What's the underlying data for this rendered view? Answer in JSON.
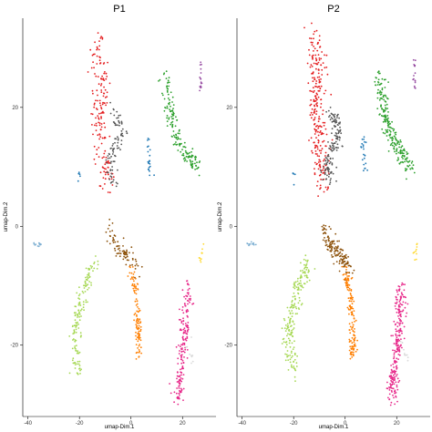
{
  "chart_data": [
    {
      "type": "scatter",
      "title": "P1",
      "xlabel": "umap-Dim.1",
      "ylabel": "umap-Dim.2",
      "xlim": [
        -42,
        33
      ],
      "ylim": [
        -32,
        35
      ],
      "xticks": [
        -40,
        -20,
        0,
        20
      ],
      "yticks": [
        -20,
        0,
        20
      ],
      "grid": false,
      "legend": "none",
      "clusters": [
        {
          "color": "#e41a1c",
          "centerline": [
            [
              -13,
              31
            ],
            [
              -11,
              24
            ],
            [
              -12,
              18
            ],
            [
              -11,
              12
            ],
            [
              -9,
              7
            ]
          ],
          "spread": 2.0,
          "n": 170
        },
        {
          "color": "#555555",
          "centerline": [
            [
              -7,
              19
            ],
            [
              -3,
              16
            ],
            [
              -6,
              13
            ],
            [
              -9,
              10
            ],
            [
              -6,
              8
            ]
          ],
          "spread": 1.3,
          "n": 90
        },
        {
          "color": "#2ca02c",
          "centerline": [
            [
              13,
              25
            ],
            [
              15,
              20
            ],
            [
              18,
              15
            ],
            [
              22,
              12
            ],
            [
              26,
              10
            ]
          ],
          "spread": 1.3,
          "n": 160
        },
        {
          "color": "#984ea3",
          "centerline": [
            [
              27,
              28
            ],
            [
              27,
              23
            ]
          ],
          "spread": 0.3,
          "n": 18
        },
        {
          "color": "#1f78b4",
          "centerline": [
            [
              7,
              15
            ],
            [
              7,
              11
            ],
            [
              8,
              9
            ]
          ],
          "spread": 0.6,
          "n": 22
        },
        {
          "color": "#1f78b4",
          "centerline": [
            [
              -20,
              9
            ],
            [
              -20,
              7
            ]
          ],
          "spread": 0.3,
          "n": 5
        },
        {
          "color": "#8c510a",
          "centerline": [
            [
              -8,
              0
            ],
            [
              -6,
              -3
            ],
            [
              -2,
              -5
            ],
            [
              2,
              -7
            ]
          ],
          "spread": 1.2,
          "n": 80
        },
        {
          "color": "#a6d854",
          "centerline": [
            [
              -14,
              -6
            ],
            [
              -18,
              -10
            ],
            [
              -21,
              -15
            ],
            [
              -22,
              -20
            ],
            [
              -20,
              -25
            ]
          ],
          "spread": 1.3,
          "n": 150
        },
        {
          "color": "#ff7f00",
          "centerline": [
            [
              0,
              -7
            ],
            [
              2,
              -12
            ],
            [
              3,
              -17
            ],
            [
              3,
              -22
            ]
          ],
          "spread": 0.8,
          "n": 110
        },
        {
          "color": "#e7298a",
          "centerline": [
            [
              22,
              -10
            ],
            [
              21,
              -16
            ],
            [
              20,
              -21
            ],
            [
              19,
              -26
            ],
            [
              18,
              -29
            ]
          ],
          "spread": 1.3,
          "n": 180
        },
        {
          "color": "#80b1d3",
          "centerline": [
            [
              -38,
              -3
            ],
            [
              -35,
              -3
            ]
          ],
          "spread": 0.4,
          "n": 12
        },
        {
          "color": "#ffd92f",
          "centerline": [
            [
              28,
              -3
            ],
            [
              27,
              -6
            ]
          ],
          "spread": 0.4,
          "n": 10
        },
        {
          "color": "#d9d9d9",
          "centerline": [
            [
              22,
              -19
            ],
            [
              24,
              -23
            ]
          ],
          "spread": 0.8,
          "n": 10
        }
      ]
    },
    {
      "type": "scatter",
      "title": "P2",
      "xlabel": "umap-Dim.1",
      "ylabel": "umap-Dim.2",
      "xlim": [
        -42,
        33
      ],
      "ylim": [
        -32,
        35
      ],
      "xticks": [
        -40,
        -20,
        0,
        20
      ],
      "yticks": [
        -20,
        0,
        20
      ],
      "grid": false,
      "legend": "none",
      "clusters": [
        {
          "color": "#e41a1c",
          "centerline": [
            [
              -12,
              31
            ],
            [
              -10,
              24
            ],
            [
              -11,
              18
            ],
            [
              -10,
              12
            ],
            [
              -8,
              7
            ]
          ],
          "spread": 2.2,
          "n": 260
        },
        {
          "color": "#555555",
          "centerline": [
            [
              -6,
              19
            ],
            [
              -2,
              16
            ],
            [
              -5,
              13
            ],
            [
              -8,
              10
            ],
            [
              -5,
              8
            ]
          ],
          "spread": 1.4,
          "n": 140
        },
        {
          "color": "#2ca02c",
          "centerline": [
            [
              13,
              25
            ],
            [
              15,
              20
            ],
            [
              18,
              15
            ],
            [
              22,
              12
            ],
            [
              26,
              10
            ]
          ],
          "spread": 1.4,
          "n": 220
        },
        {
          "color": "#984ea3",
          "centerline": [
            [
              27,
              28
            ],
            [
              27,
              23
            ]
          ],
          "spread": 0.3,
          "n": 16
        },
        {
          "color": "#1f78b4",
          "centerline": [
            [
              7,
              15
            ],
            [
              7,
              11
            ],
            [
              8,
              9
            ]
          ],
          "spread": 0.6,
          "n": 22
        },
        {
          "color": "#1f78b4",
          "centerline": [
            [
              -20,
              9
            ],
            [
              -20,
              7
            ]
          ],
          "spread": 0.3,
          "n": 5
        },
        {
          "color": "#8c510a",
          "centerline": [
            [
              -8,
              0
            ],
            [
              -6,
              -3
            ],
            [
              -2,
              -5
            ],
            [
              2,
              -7
            ]
          ],
          "spread": 1.3,
          "n": 140
        },
        {
          "color": "#a6d854",
          "centerline": [
            [
              -14,
              -6
            ],
            [
              -18,
              -10
            ],
            [
              -21,
              -15
            ],
            [
              -22,
              -20
            ],
            [
              -20,
              -25
            ]
          ],
          "spread": 1.4,
          "n": 200
        },
        {
          "color": "#ff7f00",
          "centerline": [
            [
              0,
              -7
            ],
            [
              2,
              -12
            ],
            [
              3,
              -17
            ],
            [
              3,
              -22
            ]
          ],
          "spread": 0.9,
          "n": 150
        },
        {
          "color": "#e7298a",
          "centerline": [
            [
              22,
              -10
            ],
            [
              21,
              -16
            ],
            [
              20,
              -21
            ],
            [
              19,
              -26
            ],
            [
              18,
              -29
            ]
          ],
          "spread": 1.4,
          "n": 240
        },
        {
          "color": "#80b1d3",
          "centerline": [
            [
              -38,
              -3
            ],
            [
              -35,
              -3
            ]
          ],
          "spread": 0.4,
          "n": 12
        },
        {
          "color": "#ffd92f",
          "centerline": [
            [
              28,
              -3
            ],
            [
              27,
              -6
            ]
          ],
          "spread": 0.4,
          "n": 10
        },
        {
          "color": "#d9d9d9",
          "centerline": [
            [
              22,
              -19
            ],
            [
              24,
              -23
            ]
          ],
          "spread": 0.8,
          "n": 10
        }
      ]
    }
  ]
}
